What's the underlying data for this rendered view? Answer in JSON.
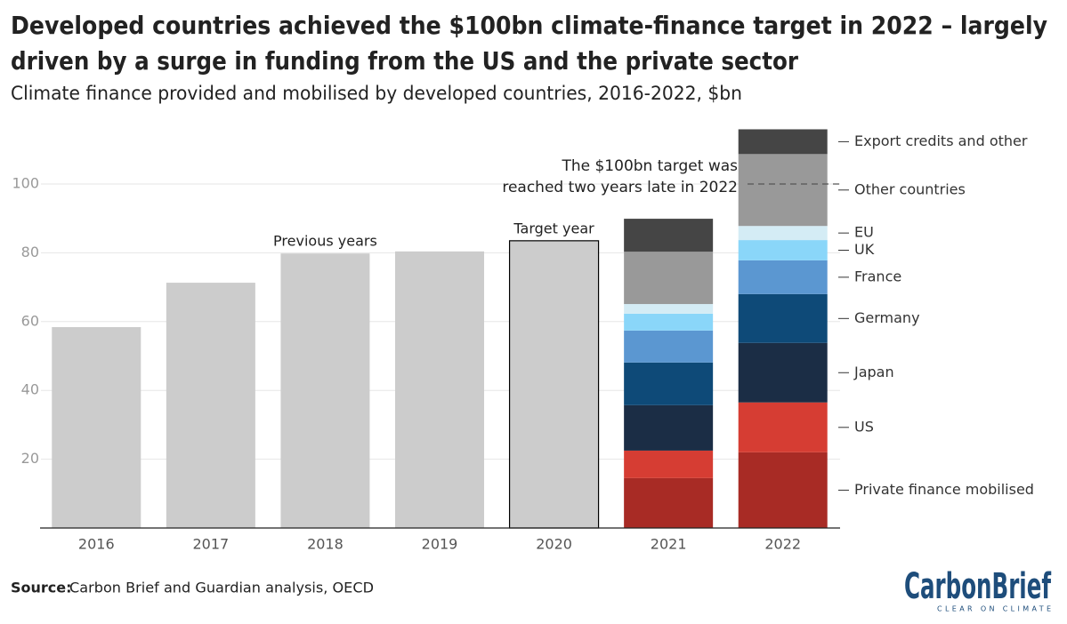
{
  "chart_data": {
    "type": "stacked-bar",
    "title": [
      "Developed countries achieved the $100bn climate-finance target in 2022 – largely",
      "driven by a surge in funding from the US and the private sector"
    ],
    "subtitle": "Climate finance provided and mobilised by developed countries, 2016-2022, $bn",
    "categories": [
      "2016",
      "2017",
      "2018",
      "2019",
      "2020",
      "2021",
      "2022"
    ],
    "values": [
      58.4,
      71.3,
      79.8,
      80.4,
      83.5,
      null,
      null
    ],
    "color": "#cccccc",
    "outlined_categories": [
      "2020"
    ],
    "series": [
      {
        "name": "Private finance mobilised",
        "color": "#a82b25",
        "values": [
          null,
          null,
          null,
          null,
          null,
          14.5,
          22.0
        ]
      },
      {
        "name": "US",
        "color": "#d63d33",
        "values": [
          null,
          null,
          null,
          null,
          null,
          8.0,
          14.5
        ]
      },
      {
        "name": "Japan",
        "color": "#1b2d45",
        "values": [
          null,
          null,
          null,
          null,
          null,
          13.2,
          17.3
        ]
      },
      {
        "name": "Germany",
        "color": "#0e4a78",
        "values": [
          null,
          null,
          null,
          null,
          null,
          12.4,
          14.2
        ]
      },
      {
        "name": "France",
        "color": "#5b97d1",
        "values": [
          null,
          null,
          null,
          null,
          null,
          9.3,
          9.8
        ]
      },
      {
        "name": "UK",
        "color": "#8ad6f9",
        "values": [
          null,
          null,
          null,
          null,
          null,
          4.9,
          5.9
        ]
      },
      {
        "name": "EU",
        "color": "#d4ecf5",
        "values": [
          null,
          null,
          null,
          null,
          null,
          2.8,
          4.1
        ]
      },
      {
        "name": "Other countries",
        "color": "#999999",
        "values": [
          null,
          null,
          null,
          null,
          null,
          15.2,
          20.9
        ]
      },
      {
        "name": "Export credits and other",
        "color": "#454545",
        "values": [
          null,
          null,
          null,
          null,
          null,
          9.6,
          7.2
        ]
      }
    ],
    "annotations": [
      {
        "text": "Previous years",
        "category": "2018"
      },
      {
        "text": "Target year",
        "category": "2020"
      }
    ],
    "target": {
      "value": 100,
      "label": [
        "The $100bn target was",
        "reached two years late in 2022"
      ]
    },
    "ylim": [
      0,
      120
    ],
    "yticks": [
      20,
      40,
      60,
      80,
      100
    ],
    "grid": true
  },
  "source": {
    "label": "Source:",
    "text": "Carbon Brief and Guardian analysis, OECD"
  },
  "logo": {
    "name": "CarbonBrief",
    "tagline": "CLEAR ON CLIMATE"
  }
}
